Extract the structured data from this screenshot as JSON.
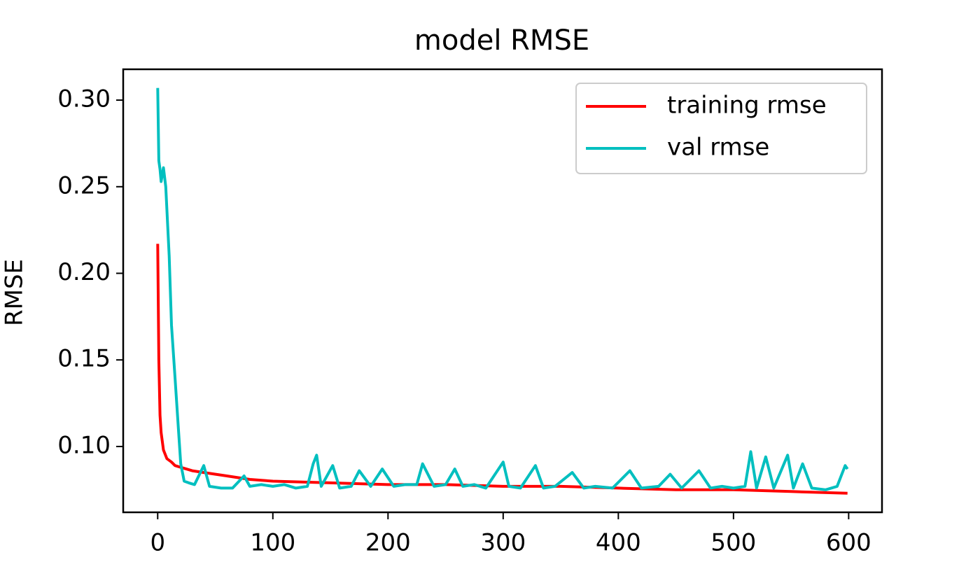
{
  "chart_data": {
    "type": "line",
    "title": "model RMSE",
    "y_label": "RMSE",
    "xlim": [
      -29.95,
      628.95
    ],
    "xticks": [
      0,
      100,
      200,
      300,
      400,
      500,
      600
    ],
    "ylim": [
      0.062,
      0.3178
    ],
    "yticks": [
      {
        "value": 0.1,
        "label": "0.10"
      },
      {
        "value": 0.15,
        "label": "0.15"
      },
      {
        "value": 0.2,
        "label": "0.20"
      },
      {
        "value": 0.25,
        "label": "0.25"
      },
      {
        "value": 0.3,
        "label": "0.30"
      }
    ],
    "legend": "upper right",
    "series": [
      {
        "name": "training rmse",
        "color": "#ff0000",
        "x": [
          0,
          1,
          2,
          3,
          5,
          8,
          12,
          15,
          20,
          30,
          40,
          60,
          80,
          100,
          150,
          200,
          250,
          300,
          350,
          400,
          450,
          500,
          550,
          599
        ],
        "values": [
          0.217,
          0.15,
          0.118,
          0.108,
          0.098,
          0.093,
          0.091,
          0.089,
          0.088,
          0.086,
          0.085,
          0.083,
          0.081,
          0.08,
          0.079,
          0.078,
          0.078,
          0.077,
          0.077,
          0.076,
          0.075,
          0.075,
          0.074,
          0.073
        ]
      },
      {
        "name": "val rmse",
        "color": "#00bfbf",
        "x": [
          0,
          1,
          2,
          3,
          5,
          7,
          10,
          12,
          15,
          18,
          20,
          23,
          27,
          32,
          40,
          45,
          55,
          65,
          75,
          80,
          90,
          100,
          110,
          120,
          130,
          135,
          138,
          142,
          152,
          158,
          168,
          175,
          185,
          195,
          205,
          215,
          225,
          230,
          240,
          250,
          258,
          265,
          275,
          285,
          300,
          305,
          315,
          328,
          335,
          345,
          360,
          370,
          380,
          395,
          410,
          420,
          435,
          445,
          455,
          470,
          480,
          490,
          500,
          510,
          515,
          520,
          528,
          535,
          547,
          552,
          560,
          568,
          580,
          590,
          597,
          599
        ],
        "values": [
          0.307,
          0.265,
          0.26,
          0.253,
          0.261,
          0.25,
          0.21,
          0.17,
          0.14,
          0.11,
          0.09,
          0.08,
          0.079,
          0.078,
          0.089,
          0.077,
          0.076,
          0.076,
          0.083,
          0.077,
          0.078,
          0.077,
          0.078,
          0.076,
          0.077,
          0.09,
          0.095,
          0.077,
          0.089,
          0.076,
          0.077,
          0.086,
          0.077,
          0.087,
          0.077,
          0.078,
          0.078,
          0.09,
          0.077,
          0.078,
          0.087,
          0.077,
          0.078,
          0.076,
          0.091,
          0.077,
          0.076,
          0.089,
          0.076,
          0.077,
          0.085,
          0.076,
          0.077,
          0.076,
          0.086,
          0.076,
          0.077,
          0.084,
          0.076,
          0.086,
          0.076,
          0.077,
          0.076,
          0.077,
          0.097,
          0.076,
          0.094,
          0.076,
          0.095,
          0.076,
          0.09,
          0.076,
          0.075,
          0.077,
          0.089,
          0.087
        ]
      }
    ]
  }
}
